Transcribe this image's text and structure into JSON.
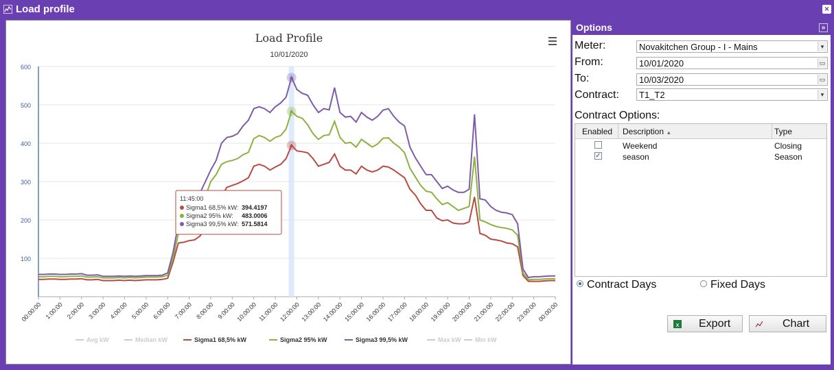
{
  "window": {
    "title": "Load profile"
  },
  "chart": {
    "menu_icon": "hamburger-menu-icon",
    "tooltip": {
      "time": "11:45:00",
      "rows": [
        {
          "label": "Sigma1 68,5% kW:",
          "value": "394.4197",
          "color": "#b84a42"
        },
        {
          "label": "Sigma2 95% kW:",
          "value": "483.0006",
          "color": "#8cb13f"
        },
        {
          "label": "Sigma3 99,5% kW:",
          "value": "571.5814",
          "color": "#7d5ba6"
        }
      ]
    }
  },
  "chart_data": {
    "type": "line",
    "title": "Load Profile",
    "subtitle": "10/01/2020",
    "xlabel": "",
    "ylabel": "",
    "ylim": [
      0,
      600
    ],
    "yticks": [
      100,
      200,
      300,
      400,
      500,
      600
    ],
    "xticks": [
      "00:00:00",
      "1:00:00",
      "2:00:00",
      "3:00:00",
      "4:00:00",
      "5:00:00",
      "6:00:00",
      "7:00:00",
      "8:00:00",
      "9:00:00",
      "10:00:00",
      "11:00:00",
      "12:00:00",
      "13:00:00",
      "14:00:00",
      "15:00:00",
      "16:00:00",
      "17:00:00",
      "18:00:00",
      "19:00:00",
      "20:00:00",
      "21:00:00",
      "22:00:00",
      "23:00:00",
      "00:00:00"
    ],
    "x_hours": [
      0,
      0.25,
      0.5,
      0.75,
      1,
      1.25,
      1.5,
      1.75,
      2,
      2.25,
      2.5,
      2.75,
      3,
      3.25,
      3.5,
      3.75,
      4,
      4.25,
      4.5,
      4.75,
      5,
      5.25,
      5.5,
      5.75,
      6,
      6.25,
      6.5,
      6.75,
      7,
      7.25,
      7.5,
      7.75,
      8,
      8.25,
      8.5,
      8.75,
      9,
      9.25,
      9.5,
      9.75,
      10,
      10.25,
      10.5,
      10.75,
      11,
      11.25,
      11.5,
      11.75,
      12,
      12.25,
      12.5,
      12.75,
      13,
      13.25,
      13.5,
      13.75,
      14,
      14.25,
      14.5,
      14.75,
      15,
      15.25,
      15.5,
      15.75,
      16,
      16.25,
      16.5,
      16.75,
      17,
      17.25,
      17.5,
      17.75,
      18,
      18.25,
      18.5,
      18.75,
      19,
      19.25,
      19.5,
      19.75,
      20,
      20.25,
      20.5,
      20.75,
      21,
      21.25,
      21.5,
      21.75,
      22,
      22.25,
      22.5,
      22.75,
      23,
      23.25,
      23.5,
      23.75,
      24
    ],
    "highlight_x_hours": 11.75,
    "legend_position": "bottom",
    "grid": true,
    "series": [
      {
        "name": "Avg kW",
        "visible": false,
        "color": "#cccccc",
        "values": []
      },
      {
        "name": "Median kW",
        "visible": false,
        "color": "#cccccc",
        "values": []
      },
      {
        "name": "Sigma1 68,5% kW",
        "visible": true,
        "color": "#b84a42",
        "values": [
          45,
          45,
          46,
          46,
          45,
          45,
          46,
          46,
          47,
          44,
          44,
          45,
          42,
          42,
          42,
          43,
          42,
          43,
          42,
          43,
          44,
          44,
          44,
          45,
          48,
          90,
          140,
          142,
          146,
          148,
          158,
          178,
          220,
          238,
          262,
          285,
          290,
          295,
          302,
          310,
          340,
          345,
          340,
          330,
          338,
          345,
          360,
          394,
          380,
          378,
          375,
          360,
          340,
          345,
          350,
          372,
          340,
          330,
          330,
          320,
          340,
          330,
          325,
          330,
          340,
          338,
          330,
          320,
          310,
          280,
          265,
          242,
          225,
          225,
          205,
          198,
          200,
          192,
          190,
          190,
          195,
          260,
          165,
          160,
          150,
          148,
          145,
          140,
          138,
          130,
          55,
          40,
          40,
          40,
          41,
          42,
          42
        ]
      },
      {
        "name": "Sigma2 95% kW",
        "visible": true,
        "color": "#8cb13f",
        "values": [
          52,
          52,
          53,
          53,
          52,
          52,
          53,
          53,
          54,
          51,
          51,
          52,
          49,
          49,
          49,
          50,
          49,
          50,
          49,
          50,
          51,
          51,
          51,
          52,
          56,
          100,
          165,
          180,
          190,
          200,
          230,
          260,
          300,
          318,
          345,
          352,
          355,
          360,
          370,
          376,
          412,
          420,
          415,
          405,
          415,
          420,
          437,
          483,
          470,
          465,
          448,
          425,
          410,
          420,
          422,
          457,
          415,
          400,
          402,
          390,
          410,
          400,
          390,
          398,
          413,
          414,
          400,
          390,
          375,
          335,
          312,
          290,
          275,
          272,
          255,
          240,
          245,
          235,
          225,
          230,
          235,
          365,
          200,
          195,
          188,
          183,
          180,
          178,
          174,
          160,
          62,
          44,
          45,
          45,
          46,
          47,
          47
        ]
      },
      {
        "name": "Sigma3 99,5% kW",
        "visible": true,
        "color": "#7d5ba6",
        "values": [
          58,
          58,
          59,
          59,
          58,
          58,
          59,
          59,
          60,
          56,
          56,
          57,
          53,
          53,
          53,
          54,
          53,
          54,
          53,
          54,
          55,
          55,
          55,
          56,
          62,
          115,
          190,
          210,
          225,
          240,
          270,
          300,
          330,
          355,
          400,
          415,
          418,
          425,
          445,
          460,
          490,
          495,
          490,
          480,
          495,
          505,
          520,
          571,
          540,
          530,
          525,
          500,
          480,
          490,
          487,
          545,
          480,
          468,
          470,
          455,
          480,
          468,
          460,
          470,
          486,
          490,
          470,
          455,
          445,
          390,
          362,
          340,
          318,
          318,
          300,
          282,
          288,
          278,
          272,
          272,
          280,
          475,
          255,
          252,
          235,
          225,
          220,
          218,
          214,
          190,
          72,
          50,
          52,
          52,
          53,
          54,
          54
        ]
      },
      {
        "name": "Max kW",
        "visible": false,
        "color": "#cccccc",
        "values": []
      },
      {
        "name": "Min kW",
        "visible": false,
        "color": "#cccccc",
        "values": []
      }
    ]
  },
  "options": {
    "title": "Options",
    "collapse_icon": "double-chevron-right-icon",
    "meter_label": "Meter:",
    "meter_value": "Novakitchen Group - I - Mains",
    "from_label": "From:",
    "from_value": "10/01/2020",
    "to_label": "To:",
    "to_value": "10/03/2020",
    "contract_label": "Contract:",
    "contract_value": "T1_T2",
    "contract_options_label": "Contract Options:",
    "grid_headers": {
      "enabled": "Enabled",
      "description": "Description",
      "type": "Type"
    },
    "grid_rows": [
      {
        "enabled": false,
        "description": "Weekend",
        "type": "Closing"
      },
      {
        "enabled": true,
        "description": "season",
        "type": "Season"
      }
    ],
    "radio_contract_days": "Contract Days",
    "radio_fixed_days": "Fixed Days",
    "selected_radio": "contract_days",
    "export_label": "Export",
    "chart_label": "Chart"
  }
}
